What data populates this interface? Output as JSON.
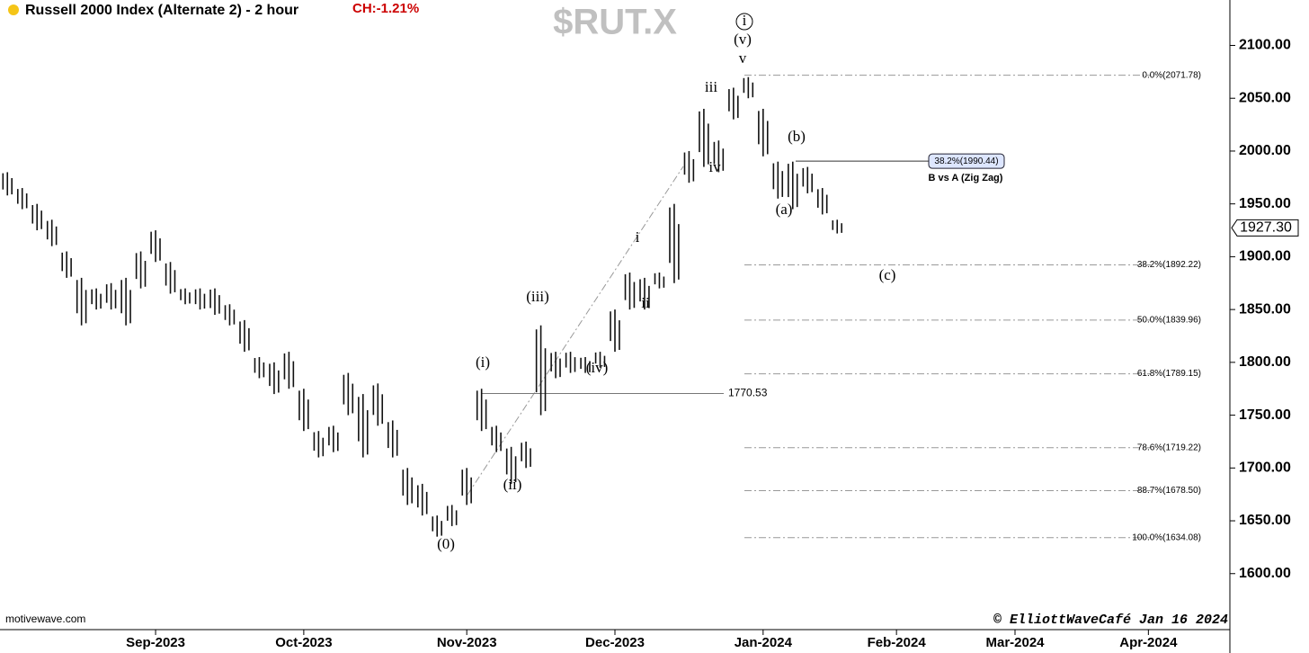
{
  "chart_data": {
    "type": "ohlc",
    "title": "Russell 2000 Index (Alternate 2) - 2 hour",
    "change": "CH:-1.21%",
    "symbol": "$RUT.X",
    "source": "motivewave.com",
    "credit": "© ElliottWaveCafé Jan 16 2024",
    "color": "#111111",
    "categories": [
      null,
      null,
      null,
      null,
      null,
      null,
      null,
      null,
      null,
      null,
      "Sep-2023",
      null,
      null,
      null,
      null,
      null,
      null,
      null,
      null,
      null,
      "Oct-2023",
      null,
      null,
      null,
      null,
      null,
      null,
      null,
      null,
      null,
      null,
      "Nov-2023",
      null,
      null,
      null,
      null,
      null,
      null,
      null,
      null,
      null,
      "Dec-2023",
      null,
      null,
      null,
      null,
      null,
      null,
      null,
      null,
      null,
      "Jan-2024",
      null,
      null,
      null,
      null,
      null,
      null,
      null,
      null,
      "Feb-2024",
      null,
      null,
      null,
      null,
      null,
      null,
      null,
      "Mar-2024",
      null,
      null,
      null,
      null,
      null,
      null,
      null,
      null,
      "Apr-2024",
      null,
      null,
      null,
      null,
      null
    ],
    "high": [
      1980,
      1965,
      1950,
      1935,
      1905,
      1880,
      1870,
      1875,
      1880,
      1905,
      1925,
      1895,
      1870,
      1870,
      1870,
      1855,
      1840,
      1805,
      1800,
      1810,
      1775,
      1735,
      1740,
      1790,
      1770,
      1780,
      1745,
      1700,
      1685,
      1655,
      1665,
      1700,
      1775,
      1740,
      1720,
      1725,
      1835,
      1810,
      1810,
      1805,
      1810,
      1850,
      1885,
      1880,
      1885,
      1950,
      2000,
      2040,
      2010,
      2060,
      2070,
      2040,
      1990,
      1990,
      1985,
      1965,
      1935,
      null,
      null,
      null,
      null,
      null,
      null,
      null,
      null,
      null,
      null,
      null,
      null,
      null,
      null,
      null,
      null,
      null,
      null,
      null,
      null,
      null,
      null,
      null,
      null,
      null,
      null
    ],
    "low": [
      1958,
      1945,
      1925,
      1910,
      1880,
      1835,
      1850,
      1850,
      1835,
      1870,
      1895,
      1865,
      1855,
      1850,
      1845,
      1835,
      1810,
      1785,
      1770,
      1775,
      1735,
      1710,
      1715,
      1750,
      1710,
      1740,
      1710,
      1665,
      1655,
      1635,
      1645,
      1665,
      1735,
      1715,
      1685,
      1700,
      1750,
      1785,
      1790,
      1790,
      1795,
      1810,
      1850,
      1850,
      1870,
      1875,
      1970,
      1985,
      1980,
      2030,
      2050,
      1995,
      1955,
      1945,
      1960,
      1940,
      1922,
      null,
      null,
      null,
      null,
      null,
      null,
      null,
      null,
      null,
      null,
      null,
      null,
      null,
      null,
      null,
      null,
      null,
      null,
      null,
      null,
      null,
      null,
      null,
      null,
      null,
      null
    ],
    "ylim": [
      1547,
      2143
    ],
    "yticks": [
      {
        "value": 1600,
        "label": "1600.00"
      },
      {
        "value": 1650,
        "label": "1650.00"
      },
      {
        "value": 1700,
        "label": "1700.00"
      },
      {
        "value": 1750,
        "label": "1750.00"
      },
      {
        "value": 1800,
        "label": "1800.00"
      },
      {
        "value": 1850,
        "label": "1850.00"
      },
      {
        "value": 1900,
        "label": "1900.00"
      },
      {
        "value": 1950,
        "label": "1950.00"
      },
      {
        "value": 2000,
        "label": "2000.00"
      },
      {
        "value": 2050,
        "label": "2050.00"
      },
      {
        "value": 2100,
        "label": "2100.00"
      }
    ],
    "last_price": {
      "value": 1927.3,
      "label": "1927.30"
    },
    "fib_levels": [
      {
        "value": 2071.78,
        "label": "0.0%(2071.78)"
      },
      {
        "value": 1892.22,
        "label": "38.2%(1892.22)"
      },
      {
        "value": 1839.96,
        "label": "50.0%(1839.96)"
      },
      {
        "value": 1789.15,
        "label": "61.8%(1789.15)"
      },
      {
        "value": 1719.22,
        "label": "78.6%(1719.22)"
      },
      {
        "value": 1678.5,
        "label": "88.7%(1678.50)"
      },
      {
        "value": 1634.08,
        "label": "100.0%(1634.08)"
      }
    ],
    "level_1": {
      "value": 1770.53,
      "label": "1770.53"
    },
    "level_2": {
      "value": 1990.44,
      "label": "38.2%(1990.44)",
      "note": "B vs A (Zig Zag)"
    },
    "annotations": [
      "i",
      "(v)",
      "v",
      "iii",
      "iv",
      "(b)",
      "(a)",
      "(c)",
      "i",
      "ii",
      "(iii)",
      "(iv)",
      "(i)",
      "(ii)",
      "(0)"
    ]
  }
}
